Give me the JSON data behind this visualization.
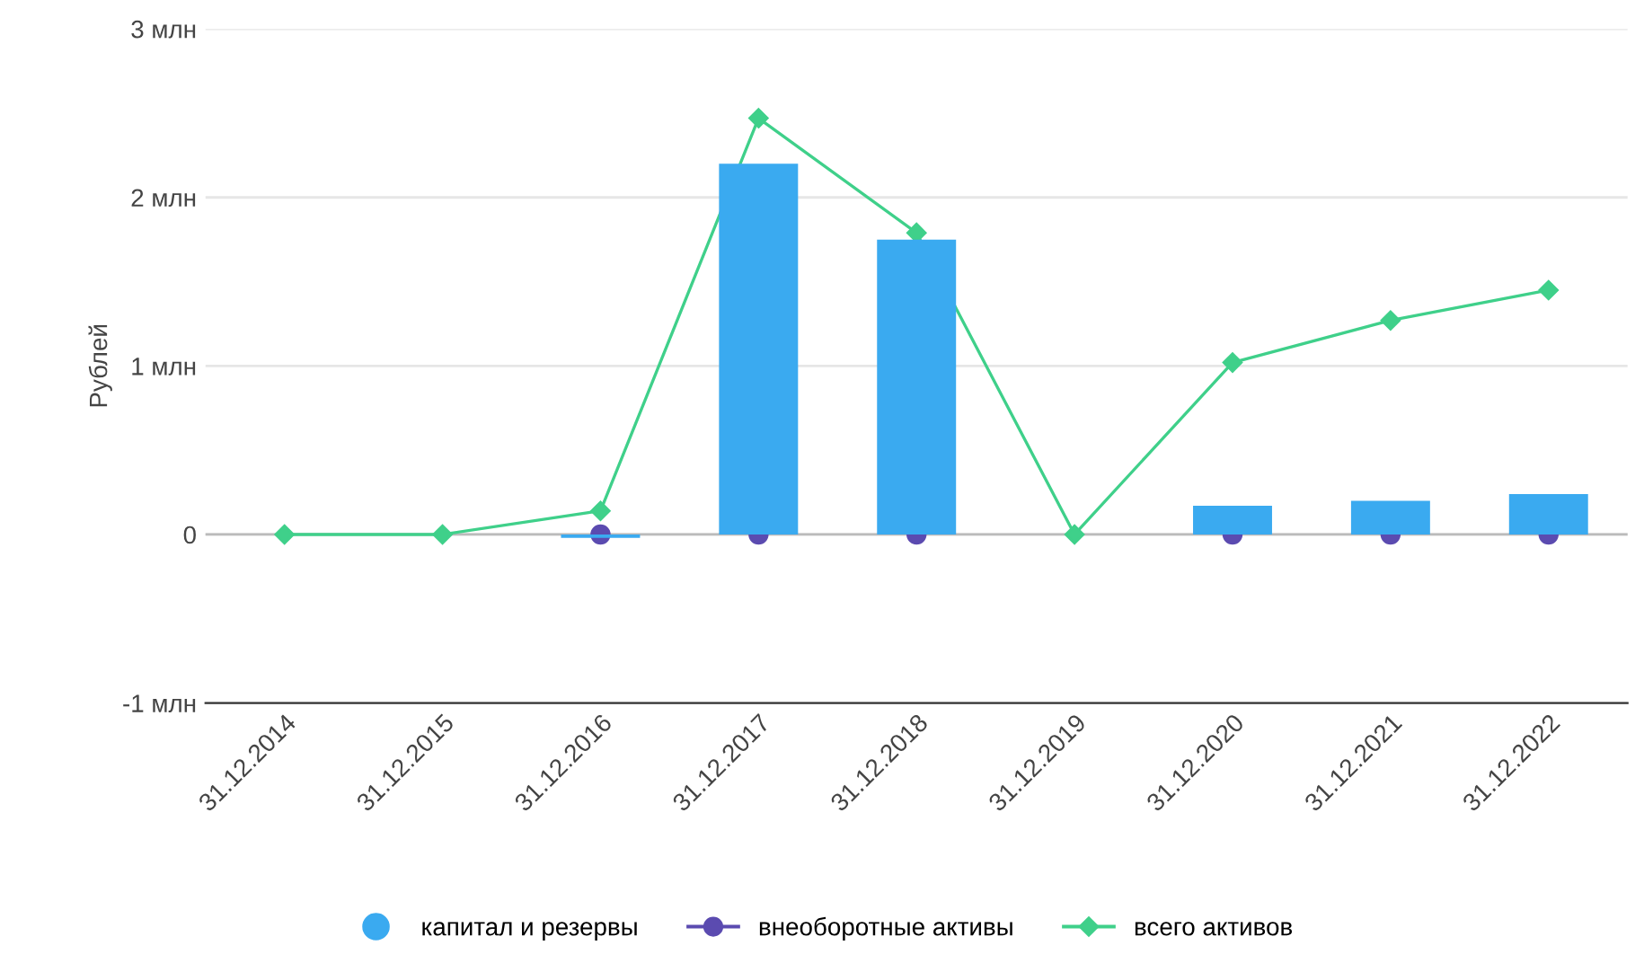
{
  "chart_data": {
    "type": "bar",
    "ylabel": "Рублей",
    "categories": [
      "31.12.2014",
      "31.12.2015",
      "31.12.2016",
      "31.12.2017",
      "31.12.2018",
      "31.12.2019",
      "31.12.2020",
      "31.12.2021",
      "31.12.2022"
    ],
    "series": [
      {
        "name": "капитал и резервы",
        "color": "#3aaaf0",
        "values": [
          null,
          null,
          -0.02,
          2.2,
          1.75,
          null,
          0.17,
          0.2,
          0.24
        ]
      },
      {
        "name": "внеоборотные активы",
        "type": "scatter",
        "color": "#5b4bb0",
        "marker": "circle",
        "values": [
          null,
          null,
          0,
          0,
          0,
          null,
          0,
          0,
          0
        ]
      },
      {
        "name": "всего активов",
        "type": "line",
        "color": "#3fd08a",
        "marker": "diamond",
        "line_style": "solid",
        "values": [
          0,
          0,
          0.14,
          2.47,
          1.79,
          0,
          1.02,
          1.27,
          1.45
        ]
      }
    ],
    "ylim": [
      -1,
      3
    ],
    "yticks": [
      {
        "value": -1,
        "label": "-1 млн"
      },
      {
        "value": 0,
        "label": "0"
      },
      {
        "value": 1,
        "label": "1 млн"
      },
      {
        "value": 2,
        "label": "2 млн"
      },
      {
        "value": 3,
        "label": "3 млн"
      }
    ],
    "grid": "y",
    "legend": "bottom"
  }
}
